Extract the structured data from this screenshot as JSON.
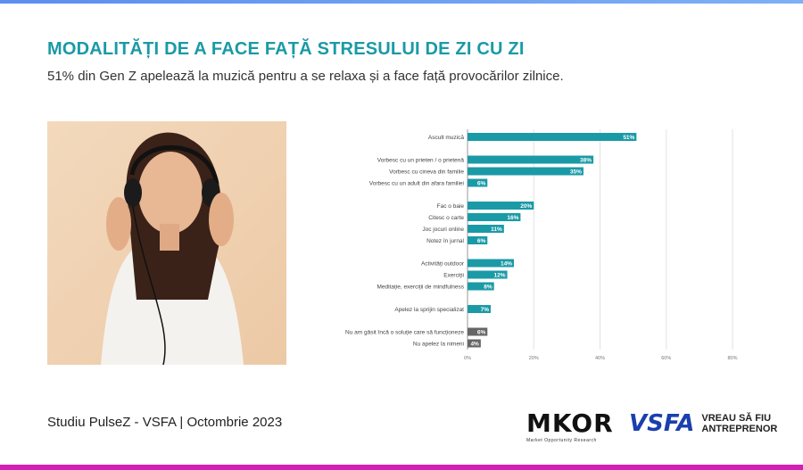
{
  "title": "MODALITĂȚI DE A FACE FAȚĂ STRESULUI DE ZI CU ZI",
  "subtitle": "51% din Gen Z apelează la muzică pentru a se relaxa și a face față provocărilor zilnice.",
  "footer": "Studiu PulseZ - VSFA | Octombrie 2023",
  "logos": {
    "mkor": "MKOR",
    "mkor_sub": "Market Opportunity Research",
    "vsfa": "VSFA",
    "vsfa_tag1": "VREAU SĂ FIU",
    "vsfa_tag2": "ANTREPRENOR"
  },
  "colors": {
    "teal": "#1a9aa6",
    "gray": "#666666",
    "top": "#6aa0f0",
    "bottom": "#d21fb4"
  },
  "chart_data": {
    "type": "bar",
    "orientation": "horizontal",
    "categories": [
      "Ascult muzică",
      "Vorbesc cu un prieten / o prietenă",
      "Vorbesc cu cineva din familie",
      "Vorbesc cu un adult din afara familiei",
      "Fac o baie",
      "Citesc o carte",
      "Joc jocuri online",
      "Notez în jurnal",
      "Activități outdoor",
      "Exerciții",
      "Meditație, exerciții de mindfulness",
      "Apelez la sprijin specializat",
      "Nu am găsit încă o soluție care să funcționeze",
      "Nu apelez la nimeni"
    ],
    "values": [
      51,
      38,
      35,
      6,
      20,
      16,
      11,
      6,
      14,
      12,
      8,
      7,
      6,
      4
    ],
    "groups": [
      0,
      1,
      1,
      1,
      2,
      2,
      2,
      2,
      3,
      3,
      3,
      4,
      5,
      5
    ],
    "highlight": [
      true,
      true,
      true,
      true,
      true,
      true,
      true,
      true,
      true,
      true,
      true,
      true,
      false,
      false
    ],
    "xlim": [
      0,
      80
    ],
    "xticks": [
      "0%",
      "20%",
      "40%",
      "60%",
      "80%"
    ],
    "grid": true
  }
}
